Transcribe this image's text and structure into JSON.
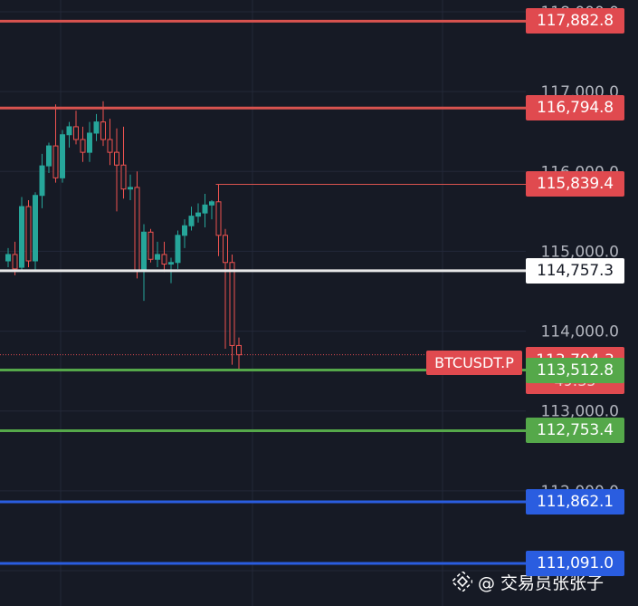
{
  "chart_data": {
    "type": "candlestick",
    "symbol": "BTCUSDT.P",
    "y_ticks": [
      "118,000.0",
      "117,000.0",
      "116,000.0",
      "115,000.0",
      "114,000.0",
      "113,000.0",
      "112,000.0",
      "111,000.0"
    ],
    "y_tick_values": [
      118000,
      117000,
      116000,
      115000,
      114000,
      113000,
      112000,
      111000
    ],
    "ylim": [
      110998,
      118085
    ],
    "grid": true,
    "candles": [
      {
        "o": 114880,
        "h": 115040,
        "l": 114800,
        "c": 114960
      },
      {
        "o": 114960,
        "h": 115120,
        "l": 114700,
        "c": 114780
      },
      {
        "o": 114800,
        "h": 115680,
        "l": 114760,
        "c": 115560
      },
      {
        "o": 115560,
        "h": 115640,
        "l": 114800,
        "c": 114880
      },
      {
        "o": 114880,
        "h": 115740,
        "l": 114760,
        "c": 115700
      },
      {
        "o": 115700,
        "h": 116220,
        "l": 115540,
        "c": 116070
      },
      {
        "o": 116070,
        "h": 116360,
        "l": 115980,
        "c": 116320
      },
      {
        "o": 116320,
        "h": 116840,
        "l": 115860,
        "c": 115920
      },
      {
        "o": 115920,
        "h": 116520,
        "l": 115860,
        "c": 116460
      },
      {
        "o": 116460,
        "h": 116620,
        "l": 116300,
        "c": 116560
      },
      {
        "o": 116560,
        "h": 116760,
        "l": 116340,
        "c": 116400
      },
      {
        "o": 116400,
        "h": 116560,
        "l": 116120,
        "c": 116240
      },
      {
        "o": 116240,
        "h": 116620,
        "l": 116120,
        "c": 116480
      },
      {
        "o": 116480,
        "h": 116720,
        "l": 116380,
        "c": 116620
      },
      {
        "o": 116620,
        "h": 116880,
        "l": 116320,
        "c": 116400
      },
      {
        "o": 116400,
        "h": 116660,
        "l": 116080,
        "c": 116240
      },
      {
        "o": 116240,
        "h": 116540,
        "l": 115500,
        "c": 116080
      },
      {
        "o": 116080,
        "h": 116560,
        "l": 115660,
        "c": 115780
      },
      {
        "o": 115780,
        "h": 115960,
        "l": 115640,
        "c": 115800
      },
      {
        "o": 115800,
        "h": 116000,
        "l": 114660,
        "c": 114760
      },
      {
        "o": 114760,
        "h": 115340,
        "l": 114380,
        "c": 115240
      },
      {
        "o": 115240,
        "h": 115280,
        "l": 114860,
        "c": 114900
      },
      {
        "o": 114900,
        "h": 115120,
        "l": 114800,
        "c": 114960
      },
      {
        "o": 114960,
        "h": 115120,
        "l": 114740,
        "c": 114840
      },
      {
        "o": 114840,
        "h": 114920,
        "l": 114600,
        "c": 114860
      },
      {
        "o": 114860,
        "h": 115260,
        "l": 114780,
        "c": 115200
      },
      {
        "o": 115200,
        "h": 115400,
        "l": 115040,
        "c": 115320
      },
      {
        "o": 115320,
        "h": 115560,
        "l": 115260,
        "c": 115440
      },
      {
        "o": 115440,
        "h": 115600,
        "l": 115360,
        "c": 115480
      },
      {
        "o": 115480,
        "h": 115720,
        "l": 115300,
        "c": 115580
      },
      {
        "o": 115580,
        "h": 115640,
        "l": 115400,
        "c": 115620
      },
      {
        "o": 115620,
        "h": 115840,
        "l": 114940,
        "c": 115200
      },
      {
        "o": 115200,
        "h": 115280,
        "l": 113780,
        "c": 114860
      },
      {
        "o": 114860,
        "h": 114960,
        "l": 113580,
        "c": 113820
      },
      {
        "o": 113820,
        "h": 113920,
        "l": 113500,
        "c": 113704
      }
    ],
    "levels": [
      {
        "value": 117882.8,
        "label": "117,882.8",
        "color": "#d9534f",
        "tag": "red"
      },
      {
        "value": 116794.8,
        "label": "116,794.8",
        "color": "#d9534f",
        "tag": "red"
      },
      {
        "value": 115839.4,
        "label": "115,839.4",
        "color": "#d9534f",
        "tag": "red",
        "start_candle": 31
      },
      {
        "value": 114757.3,
        "label": "114,757.3",
        "color": "#e8e8e8",
        "tag": "white"
      },
      {
        "value": 113512.8,
        "label": "113,512.8",
        "color": "#55a84a",
        "tag": "green"
      },
      {
        "value": 112753.4,
        "label": "112,753.4",
        "color": "#55a84a",
        "tag": "green"
      },
      {
        "value": 111862.1,
        "label": "111,862.1",
        "color": "#2a5de0",
        "tag": "blue"
      },
      {
        "value": 111091.0,
        "label": "111,091.0",
        "color": "#2a5de0",
        "tag": "blue"
      }
    ],
    "current_price": {
      "value": 113704.3,
      "label": "113,704.3",
      "countdown": "49:35"
    },
    "colors": {
      "up": "#26a69a",
      "down": "#ef5350",
      "background": "#161a25",
      "grid": "#232838",
      "tick_text": "#b2b5be"
    }
  },
  "watermark": {
    "text": "@ 交易员张张子",
    "icon": "binance-square-icon"
  }
}
